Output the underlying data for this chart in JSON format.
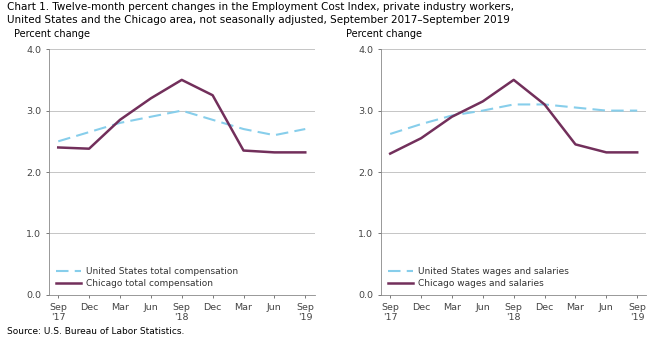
{
  "title_line1": "Chart 1. Twelve-month percent changes in the Employment Cost Index, private industry workers,",
  "title_line2": "United States and the Chicago area, not seasonally adjusted, September 2017–September 2019",
  "source": "Source: U.S. Bureau of Labor Statistics.",
  "ylabel": "Percent change",
  "xlabels": [
    "Sep\n'17",
    "Dec",
    "Mar",
    "Jun",
    "Sep\n'18",
    "Dec",
    "Mar",
    "Jun",
    "Sep\n'19"
  ],
  "ylim": [
    0.0,
    4.0
  ],
  "yticks": [
    0.0,
    1.0,
    2.0,
    3.0,
    4.0
  ],
  "left_chart": {
    "us_label": "United States total compensation",
    "chicago_label": "Chicago total compensation",
    "us_data": [
      2.5,
      2.65,
      2.8,
      2.9,
      3.0,
      2.85,
      2.7,
      2.6,
      2.7
    ],
    "chicago_data": [
      2.4,
      2.38,
      2.85,
      3.2,
      3.5,
      3.25,
      2.35,
      2.32,
      2.32
    ]
  },
  "right_chart": {
    "us_label": "United States wages and salaries",
    "chicago_label": "Chicago wages and salaries",
    "us_data": [
      2.62,
      2.78,
      2.92,
      3.0,
      3.1,
      3.1,
      3.05,
      3.0,
      3.0
    ],
    "chicago_data": [
      2.3,
      2.55,
      2.9,
      3.15,
      3.5,
      3.1,
      2.45,
      2.32,
      2.32
    ]
  },
  "us_color": "#87CEEB",
  "chicago_color": "#722F5B",
  "us_lw": 1.5,
  "chicago_lw": 1.8,
  "grid_color": "#BBBBBB",
  "bg_color": "#FFFFFF",
  "title_fontsize": 7.5,
  "label_fontsize": 7.0,
  "tick_fontsize": 6.8,
  "legend_fontsize": 6.5,
  "source_fontsize": 6.5
}
